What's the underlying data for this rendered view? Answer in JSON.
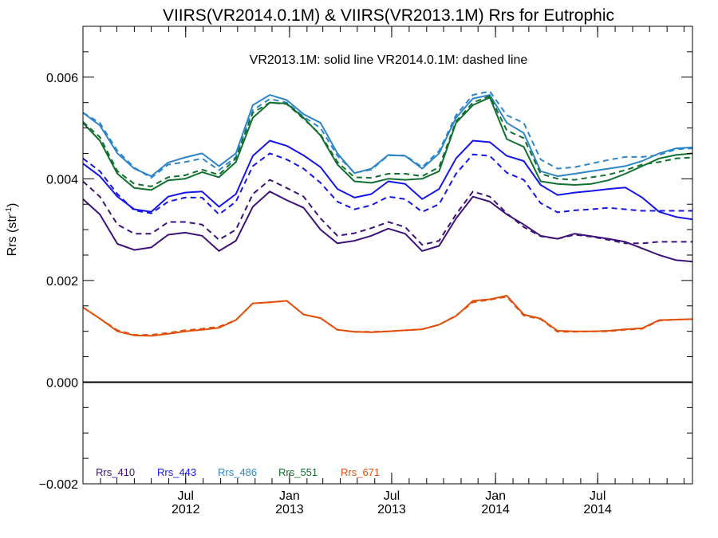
{
  "chart_data": {
    "type": "line",
    "title": "VIIRS(VR2014.0.1M) & VIIRS(VR2013.1M)  Rrs for Eutrophic",
    "subtitle": "VR2013.1M: solid line   VR2014.0.1M: dashed line",
    "ylabel": "Rrs (str",
    "ylabel_sup": "-1",
    "ylabel_close": ")",
    "ylim": [
      -0.002,
      0.007
    ],
    "xlim": [
      "2012-01-01",
      "2014-12-16"
    ],
    "zero_line": 0,
    "y_ticks": [
      {
        "value": -0.002,
        "label": "−0.002"
      },
      {
        "value": 0.0,
        "label": "0.000"
      },
      {
        "value": 0.002,
        "label": "0.002"
      },
      {
        "value": 0.004,
        "label": "0.004"
      },
      {
        "value": 0.006,
        "label": "0.006"
      }
    ],
    "x_ticks": [
      {
        "date": "2012-07-01",
        "line1": "Jul",
        "line2": "2012"
      },
      {
        "date": "2013-01-01",
        "line1": "Jan",
        "line2": "2013"
      },
      {
        "date": "2013-07-01",
        "line1": "Jul",
        "line2": "2013"
      },
      {
        "date": "2014-01-01",
        "line1": "Jan",
        "line2": "2014"
      },
      {
        "date": "2014-07-01",
        "line1": "Jul",
        "line2": "2014"
      }
    ],
    "x": [
      "2012-01-01",
      "2012-01-31",
      "2012-03-02",
      "2012-04-01",
      "2012-05-01",
      "2012-05-31",
      "2012-06-30",
      "2012-07-30",
      "2012-08-29",
      "2012-09-28",
      "2012-10-28",
      "2012-11-27",
      "2012-12-27",
      "2013-01-26",
      "2013-02-25",
      "2013-03-27",
      "2013-04-26",
      "2013-05-26",
      "2013-06-25",
      "2013-07-25",
      "2013-08-24",
      "2013-09-23",
      "2013-10-23",
      "2013-11-22",
      "2013-12-22",
      "2014-01-21",
      "2014-02-20",
      "2014-03-22",
      "2014-04-21",
      "2014-05-21",
      "2014-06-20",
      "2014-07-20",
      "2014-08-19",
      "2014-09-18",
      "2014-10-18",
      "2014-11-17",
      "2014-12-17"
    ],
    "legend_position": "bottom-left",
    "grid": false,
    "series": [
      {
        "name": "Rrs_410",
        "color": "#3d1278",
        "style": "solid",
        "values": [
          0.0036,
          0.0033,
          0.00272,
          0.0026,
          0.00265,
          0.0029,
          0.00294,
          0.00288,
          0.00258,
          0.00278,
          0.00345,
          0.00375,
          0.00358,
          0.00343,
          0.003,
          0.00273,
          0.00278,
          0.00288,
          0.00302,
          0.00292,
          0.00258,
          0.00268,
          0.00322,
          0.00365,
          0.00355,
          0.0033,
          0.0031,
          0.00288,
          0.00282,
          0.00292,
          0.00287,
          0.00282,
          0.00276,
          0.00263,
          0.0025,
          0.0024,
          0.00237
        ]
      },
      {
        "name": "Rrs_410",
        "color": "#3d1278",
        "style": "dashed",
        "values": [
          0.00395,
          0.00365,
          0.0031,
          0.00292,
          0.00292,
          0.00315,
          0.00315,
          0.0031,
          0.0028,
          0.003,
          0.0037,
          0.00398,
          0.00382,
          0.00365,
          0.00322,
          0.00288,
          0.00293,
          0.00303,
          0.00315,
          0.00305,
          0.0027,
          0.00278,
          0.0033,
          0.00375,
          0.00365,
          0.00332,
          0.00305,
          0.00287,
          0.00282,
          0.0029,
          0.00286,
          0.0028,
          0.00273,
          0.00273,
          0.00276,
          0.00276,
          0.00276
        ]
      },
      {
        "name": "Rrs_443",
        "color": "#1515e8",
        "style": "solid",
        "values": [
          0.0043,
          0.00405,
          0.00365,
          0.0034,
          0.00335,
          0.00365,
          0.00373,
          0.00375,
          0.00345,
          0.0037,
          0.00445,
          0.00475,
          0.00465,
          0.00446,
          0.00423,
          0.0038,
          0.00363,
          0.0037,
          0.00395,
          0.0039,
          0.0036,
          0.0038,
          0.0044,
          0.00475,
          0.00472,
          0.00445,
          0.00435,
          0.00388,
          0.00368,
          0.00373,
          0.00376,
          0.0038,
          0.00383,
          0.00363,
          0.00335,
          0.00325,
          0.0032
        ]
      },
      {
        "name": "Rrs_443",
        "color": "#1515e8",
        "style": "dashed",
        "values": [
          0.0044,
          0.00415,
          0.0037,
          0.00338,
          0.00332,
          0.00355,
          0.00363,
          0.00363,
          0.0033,
          0.00355,
          0.00425,
          0.0045,
          0.00438,
          0.0042,
          0.00392,
          0.00355,
          0.0034,
          0.00348,
          0.00365,
          0.0036,
          0.00335,
          0.0035,
          0.0041,
          0.00448,
          0.00445,
          0.00412,
          0.00398,
          0.00352,
          0.00334,
          0.00338,
          0.0034,
          0.00343,
          0.0034,
          0.00337,
          0.00337,
          0.00337,
          0.00337
        ]
      },
      {
        "name": "Rrs_486",
        "color": "#2e86c8",
        "style": "solid",
        "values": [
          0.0053,
          0.00505,
          0.0045,
          0.0042,
          0.00405,
          0.00432,
          0.00442,
          0.0045,
          0.00425,
          0.0045,
          0.00545,
          0.00565,
          0.00555,
          0.00527,
          0.0051,
          0.0045,
          0.00411,
          0.0042,
          0.00447,
          0.00445,
          0.0042,
          0.0045,
          0.0052,
          0.00558,
          0.00565,
          0.0051,
          0.0049,
          0.00415,
          0.00405,
          0.0041,
          0.00415,
          0.0042,
          0.00425,
          0.00435,
          0.0045,
          0.0046,
          0.00462
        ]
      },
      {
        "name": "Rrs_486",
        "color": "#2e86c8",
        "style": "dashed",
        "values": [
          0.0053,
          0.0051,
          0.00455,
          0.00422,
          0.00402,
          0.00428,
          0.00433,
          0.0044,
          0.00417,
          0.00443,
          0.00535,
          0.00557,
          0.0055,
          0.00522,
          0.005,
          0.00445,
          0.00412,
          0.00418,
          0.00446,
          0.00446,
          0.00423,
          0.00455,
          0.00525,
          0.00565,
          0.00572,
          0.00525,
          0.0051,
          0.00438,
          0.0042,
          0.00423,
          0.0043,
          0.00437,
          0.00443,
          0.00443,
          0.00447,
          0.00458,
          0.0046
        ]
      },
      {
        "name": "Rrs_551",
        "color": "#127030",
        "style": "solid",
        "values": [
          0.0051,
          0.00475,
          0.0041,
          0.00382,
          0.00378,
          0.00397,
          0.004,
          0.00413,
          0.00403,
          0.00433,
          0.0052,
          0.0055,
          0.00548,
          0.0052,
          0.00485,
          0.00428,
          0.00395,
          0.00392,
          0.004,
          0.00398,
          0.004,
          0.00415,
          0.0051,
          0.00545,
          0.0056,
          0.00478,
          0.00463,
          0.00395,
          0.0039,
          0.00388,
          0.0039,
          0.00397,
          0.0041,
          0.00425,
          0.0044,
          0.00447,
          0.0045
        ]
      },
      {
        "name": "Rrs_551",
        "color": "#127030",
        "style": "dashed",
        "values": [
          0.00512,
          0.00482,
          0.00415,
          0.0039,
          0.00385,
          0.00403,
          0.00407,
          0.00418,
          0.00408,
          0.0044,
          0.0053,
          0.0055,
          0.00547,
          0.00518,
          0.00487,
          0.00433,
          0.00403,
          0.00402,
          0.0041,
          0.0041,
          0.00405,
          0.00423,
          0.00513,
          0.0055,
          0.00563,
          0.00495,
          0.0048,
          0.0041,
          0.004,
          0.00398,
          0.00403,
          0.00408,
          0.00417,
          0.00428,
          0.00433,
          0.0044,
          0.00442
        ]
      },
      {
        "name": "Rrs_671",
        "color": "#e0500e",
        "style": "solid",
        "values": [
          0.00147,
          0.00125,
          0.001,
          0.00092,
          0.00091,
          0.00095,
          0.001,
          0.00103,
          0.00107,
          0.00122,
          0.00155,
          0.00157,
          0.0016,
          0.00133,
          0.00126,
          0.00103,
          0.00099,
          0.00098,
          0.001,
          0.00102,
          0.00104,
          0.00113,
          0.0013,
          0.0016,
          0.00163,
          0.0017,
          0.00133,
          0.00125,
          0.00101,
          0.001,
          0.001,
          0.00101,
          0.00104,
          0.00106,
          0.00122,
          0.00123,
          0.00124
        ]
      },
      {
        "name": "Rrs_671",
        "color": "#e0500e",
        "style": "dashed",
        "values": [
          0.00147,
          0.00125,
          0.00102,
          0.00093,
          0.00093,
          0.00097,
          0.00102,
          0.00105,
          0.00109,
          0.00122,
          0.00155,
          0.00157,
          0.0016,
          0.00133,
          0.00126,
          0.00103,
          0.00099,
          0.00099,
          0.001,
          0.00102,
          0.00104,
          0.00113,
          0.00131,
          0.00157,
          0.00162,
          0.00168,
          0.00131,
          0.00124,
          0.00099,
          0.00099,
          0.001,
          0.001,
          0.00103,
          0.00105,
          0.00121,
          0.00123,
          0.00124
        ]
      }
    ],
    "legend": [
      {
        "label": "Rrs_410",
        "color": "#3d1278"
      },
      {
        "label": "Rrs_443",
        "color": "#1515e8"
      },
      {
        "label": "Rrs_486",
        "color": "#2e86c8"
      },
      {
        "label": "Rrs_551",
        "color": "#127030"
      },
      {
        "label": "Rrs_671",
        "color": "#e0500e"
      }
    ]
  }
}
